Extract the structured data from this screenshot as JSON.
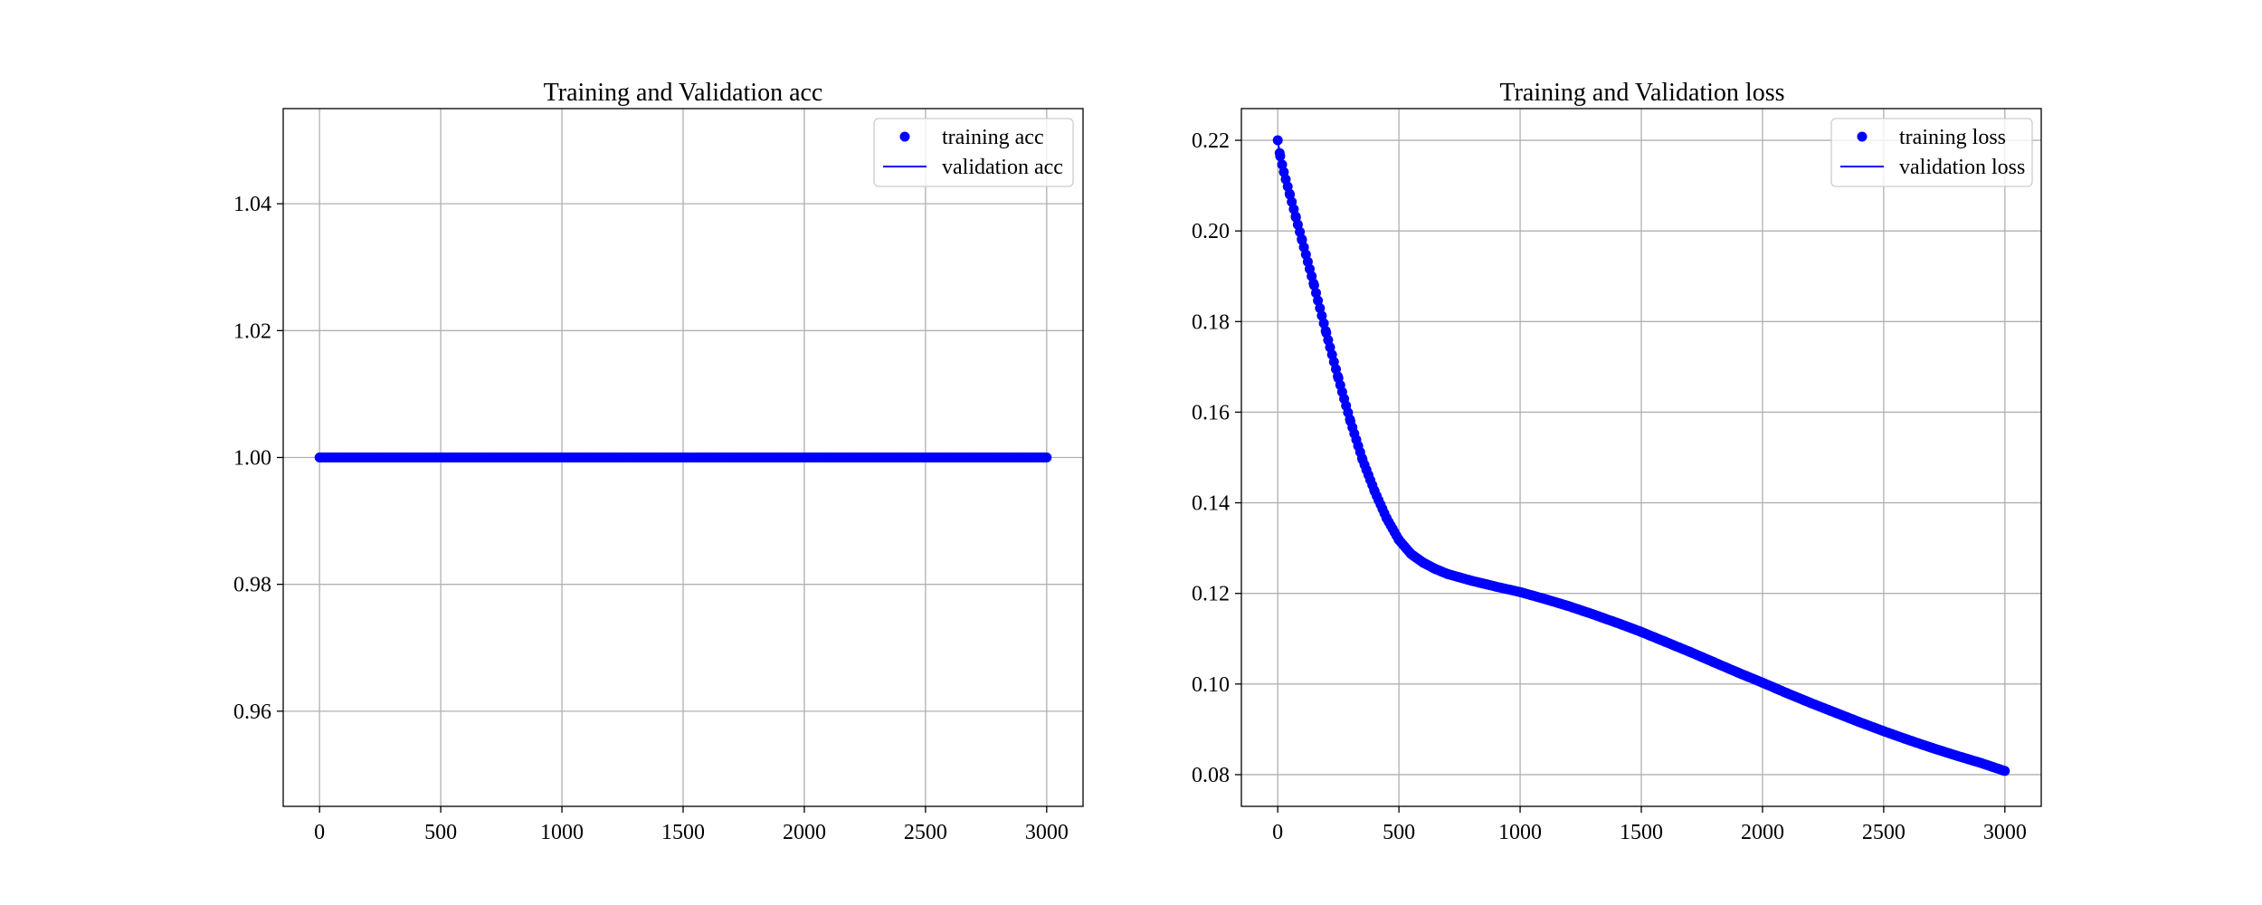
{
  "colors": {
    "series": "#0000ff",
    "grid": "#b0b0b0",
    "axes": "#000000",
    "legend_frame": "#cccccc",
    "background": "#ffffff"
  },
  "chart_data": [
    {
      "type": "scatter",
      "title": "Training and Validation acc",
      "xlabel": "",
      "ylabel": "",
      "xlim": [
        -150,
        3150
      ],
      "ylim": [
        0.945,
        1.055
      ],
      "xticks": [
        0,
        500,
        1000,
        1500,
        2000,
        2500,
        3000
      ],
      "xtick_labels": [
        "0",
        "500",
        "1000",
        "1500",
        "2000",
        "2500",
        "3000"
      ],
      "yticks": [
        0.96,
        0.98,
        1.0,
        1.02,
        1.04
      ],
      "ytick_labels": [
        "0.96",
        "0.98",
        "1.00",
        "1.02",
        "1.04"
      ],
      "grid": true,
      "legend_position": "top-right",
      "series": [
        {
          "name": "training acc",
          "style": "markers",
          "x": [
            0,
            100,
            200,
            300,
            400,
            500,
            600,
            700,
            800,
            900,
            1000,
            1100,
            1200,
            1300,
            1400,
            1500,
            1600,
            1700,
            1800,
            1900,
            2000,
            2100,
            2200,
            2300,
            2400,
            2500,
            2600,
            2700,
            2800,
            2900,
            3000
          ],
          "y": [
            1.0,
            1.0,
            1.0,
            1.0,
            1.0,
            1.0,
            1.0,
            1.0,
            1.0,
            1.0,
            1.0,
            1.0,
            1.0,
            1.0,
            1.0,
            1.0,
            1.0,
            1.0,
            1.0,
            1.0,
            1.0,
            1.0,
            1.0,
            1.0,
            1.0,
            1.0,
            1.0,
            1.0,
            1.0,
            1.0,
            1.0
          ]
        },
        {
          "name": "validation acc",
          "style": "line",
          "x": [
            0,
            3000
          ],
          "y": [
            1.0,
            1.0
          ]
        }
      ]
    },
    {
      "type": "scatter",
      "title": "Training and Validation loss",
      "xlabel": "",
      "ylabel": "",
      "xlim": [
        -150,
        3150
      ],
      "ylim": [
        0.073,
        0.227
      ],
      "xticks": [
        0,
        500,
        1000,
        1500,
        2000,
        2500,
        3000
      ],
      "xtick_labels": [
        "0",
        "500",
        "1000",
        "1500",
        "2000",
        "2500",
        "3000"
      ],
      "yticks": [
        0.08,
        0.1,
        0.12,
        0.14,
        0.16,
        0.18,
        0.2,
        0.22
      ],
      "ytick_labels": [
        "0.08",
        "0.10",
        "0.12",
        "0.14",
        "0.16",
        "0.18",
        "0.20",
        "0.22"
      ],
      "grid": true,
      "legend_position": "top-right",
      "series": [
        {
          "name": "training loss",
          "style": "markers",
          "x": [
            0,
            10,
            25,
            50,
            75,
            100,
            150,
            200,
            250,
            300,
            350,
            400,
            450,
            500,
            550,
            600,
            650,
            700,
            800,
            900,
            1000,
            1100,
            1200,
            1300,
            1400,
            1500,
            1600,
            1700,
            1800,
            1900,
            2000,
            2100,
            2200,
            2300,
            2400,
            2500,
            2600,
            2700,
            2800,
            2900,
            3000
          ],
          "y": [
            0.22,
            0.2165,
            0.213,
            0.208,
            0.203,
            0.198,
            0.188,
            0.1775,
            0.1675,
            0.158,
            0.1495,
            0.1425,
            0.1365,
            0.1318,
            0.1287,
            0.1268,
            0.1254,
            0.1243,
            0.1228,
            0.1215,
            0.1203,
            0.1188,
            0.1172,
            0.1154,
            0.1135,
            0.1115,
            0.1093,
            0.1071,
            0.1048,
            0.1025,
            0.1003,
            0.098,
            0.0958,
            0.0937,
            0.0916,
            0.0896,
            0.0877,
            0.0859,
            0.0842,
            0.0826,
            0.0808
          ]
        },
        {
          "name": "validation loss",
          "style": "line",
          "x": [
            0,
            10,
            25,
            50,
            75,
            100,
            150,
            200,
            250,
            300,
            350,
            400,
            450,
            500,
            550,
            600,
            650,
            700,
            800,
            900,
            1000,
            1100,
            1200,
            1300,
            1400,
            1500,
            1600,
            1700,
            1800,
            1900,
            2000,
            2100,
            2200,
            2300,
            2400,
            2500,
            2600,
            2700,
            2800,
            2900,
            3000
          ],
          "y": [
            0.22,
            0.2165,
            0.213,
            0.208,
            0.203,
            0.198,
            0.188,
            0.1775,
            0.1675,
            0.158,
            0.1495,
            0.1425,
            0.1365,
            0.1318,
            0.1287,
            0.1268,
            0.1254,
            0.1243,
            0.1228,
            0.1215,
            0.1203,
            0.1188,
            0.1172,
            0.1154,
            0.1135,
            0.1115,
            0.1093,
            0.1071,
            0.1048,
            0.1025,
            0.1003,
            0.098,
            0.0958,
            0.0937,
            0.0916,
            0.0896,
            0.0877,
            0.0859,
            0.0842,
            0.0826,
            0.0808
          ]
        }
      ]
    }
  ]
}
